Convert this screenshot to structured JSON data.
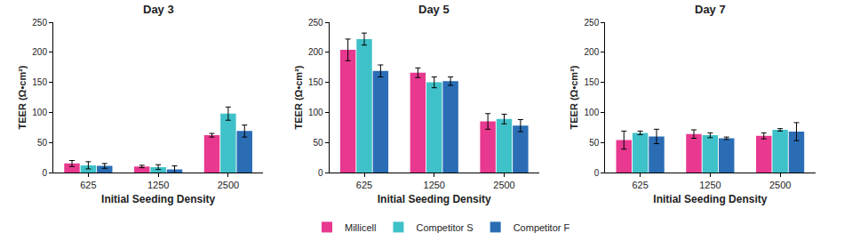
{
  "chart_data": [
    {
      "type": "bar",
      "title": "Day 3",
      "xlabel": "Initial Seeding Density",
      "ylabel": "TEER (Ω•cm²)",
      "categories": [
        "625",
        "1250",
        "2500"
      ],
      "series": [
        {
          "name": "Millicell",
          "color": "#e8388f",
          "values": [
            15,
            10,
            62
          ],
          "errors": [
            5,
            2,
            3
          ]
        },
        {
          "name": "Competitor S",
          "color": "#3fc1c9",
          "values": [
            12,
            9,
            98
          ],
          "errors": [
            6,
            4,
            11
          ]
        },
        {
          "name": "Competitor F",
          "color": "#2a6db5",
          "values": [
            11,
            5,
            69
          ],
          "errors": [
            4,
            6,
            10
          ]
        }
      ],
      "ylim": [
        0,
        250
      ],
      "yticks": [
        0,
        50,
        100,
        150,
        200,
        250
      ],
      "grid": false,
      "legend": "bottom"
    },
    {
      "type": "bar",
      "title": "Day 5",
      "xlabel": "Initial Seeding Density",
      "ylabel": "TEER (Ω•cm²)",
      "categories": [
        "625",
        "1250",
        "2500"
      ],
      "series": [
        {
          "name": "Millicell",
          "color": "#e8388f",
          "values": [
            204,
            166,
            85
          ],
          "errors": [
            18,
            8,
            13
          ]
        },
        {
          "name": "Competitor S",
          "color": "#3fc1c9",
          "values": [
            222,
            150,
            89
          ],
          "errors": [
            10,
            9,
            8
          ]
        },
        {
          "name": "Competitor F",
          "color": "#2a6db5",
          "values": [
            169,
            152,
            78
          ],
          "errors": [
            10,
            7,
            10
          ]
        }
      ],
      "ylim": [
        0,
        250
      ],
      "yticks": [
        0,
        50,
        100,
        150,
        200,
        250
      ],
      "grid": false,
      "legend": "bottom"
    },
    {
      "type": "bar",
      "title": "Day 7",
      "xlabel": "Initial Seeding Density",
      "ylabel": "TEER (Ω•cm²)",
      "categories": [
        "625",
        "1250",
        "2500"
      ],
      "series": [
        {
          "name": "Millicell",
          "color": "#e8388f",
          "values": [
            54,
            64,
            61
          ],
          "errors": [
            15,
            7,
            5
          ]
        },
        {
          "name": "Competitor S",
          "color": "#3fc1c9",
          "values": [
            66,
            62,
            71
          ],
          "errors": [
            3,
            4,
            2
          ]
        },
        {
          "name": "Competitor F",
          "color": "#2a6db5",
          "values": [
            60,
            57,
            68
          ],
          "errors": [
            12,
            2,
            15
          ]
        }
      ],
      "ylim": [
        0,
        250
      ],
      "yticks": [
        0,
        50,
        100,
        150,
        200,
        250
      ],
      "grid": false,
      "legend": "bottom"
    }
  ]
}
